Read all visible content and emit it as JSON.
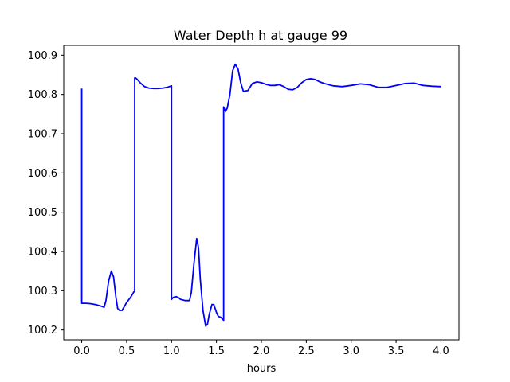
{
  "chart_data": {
    "type": "line",
    "title": "Water Depth h at gauge 99",
    "xlabel": "hours",
    "ylabel": "",
    "xlim": [
      -0.2,
      4.2
    ],
    "ylim": [
      100.175,
      100.925
    ],
    "x_ticks": [
      0.0,
      0.5,
      1.0,
      1.5,
      2.0,
      2.5,
      3.0,
      3.5,
      4.0
    ],
    "x_tick_labels": [
      "0.0",
      "0.5",
      "1.0",
      "1.5",
      "2.0",
      "2.5",
      "3.0",
      "3.5",
      "4.0"
    ],
    "y_ticks": [
      100.2,
      100.3,
      100.4,
      100.5,
      100.6,
      100.7,
      100.8,
      100.9
    ],
    "y_tick_labels": [
      "100.2",
      "100.3",
      "100.4",
      "100.5",
      "100.6",
      "100.7",
      "100.8",
      "100.9"
    ],
    "grid": false,
    "legend": "none",
    "series": [
      {
        "color": "#0000ff",
        "x": [
          0.0,
          0.0,
          0.05,
          0.1,
          0.15,
          0.2,
          0.25,
          0.27,
          0.3,
          0.33,
          0.355,
          0.38,
          0.4,
          0.42,
          0.45,
          0.5,
          0.55,
          0.58,
          0.59,
          0.59,
          0.6,
          0.62,
          0.65,
          0.7,
          0.75,
          0.8,
          0.85,
          0.9,
          0.95,
          1.0,
          1.0,
          1.02,
          1.05,
          1.08,
          1.1,
          1.15,
          1.2,
          1.22,
          1.25,
          1.28,
          1.3,
          1.32,
          1.35,
          1.38,
          1.4,
          1.42,
          1.45,
          1.47,
          1.5,
          1.52,
          1.55,
          1.58,
          1.58,
          1.6,
          1.62,
          1.65,
          1.68,
          1.71,
          1.74,
          1.77,
          1.8,
          1.85,
          1.9,
          1.95,
          2.0,
          2.05,
          2.1,
          2.15,
          2.2,
          2.25,
          2.3,
          2.35,
          2.4,
          2.45,
          2.5,
          2.55,
          2.6,
          2.65,
          2.7,
          2.75,
          2.8,
          2.9,
          3.0,
          3.1,
          3.2,
          3.3,
          3.4,
          3.5,
          3.6,
          3.7,
          3.8,
          3.9,
          4.0
        ],
        "y": [
          100.815,
          100.268,
          100.268,
          100.267,
          100.265,
          100.262,
          100.258,
          100.275,
          100.325,
          100.35,
          100.335,
          100.285,
          100.255,
          100.25,
          100.25,
          100.27,
          100.285,
          100.297,
          100.298,
          100.842,
          100.842,
          100.838,
          100.83,
          100.82,
          100.816,
          100.815,
          100.815,
          100.816,
          100.818,
          100.822,
          100.278,
          100.283,
          100.285,
          100.282,
          100.278,
          100.275,
          100.275,
          100.295,
          100.37,
          100.433,
          100.41,
          100.33,
          100.25,
          100.21,
          100.215,
          100.24,
          100.265,
          100.265,
          100.245,
          100.235,
          100.232,
          100.225,
          100.768,
          100.757,
          100.765,
          100.8,
          100.86,
          100.877,
          100.865,
          100.83,
          100.808,
          100.81,
          100.828,
          100.832,
          100.83,
          100.826,
          100.823,
          100.823,
          100.825,
          100.82,
          100.813,
          100.812,
          100.818,
          100.83,
          100.838,
          100.84,
          100.838,
          100.832,
          100.828,
          100.825,
          100.822,
          100.82,
          100.823,
          100.827,
          100.825,
          100.818,
          100.818,
          100.823,
          100.828,
          100.829,
          100.823,
          100.821,
          100.82
        ]
      }
    ]
  }
}
